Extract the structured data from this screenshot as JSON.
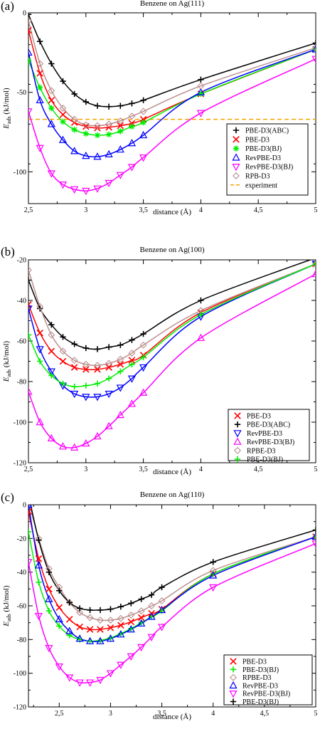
{
  "chart_data": [
    {
      "type": "line",
      "panel_label": "(a)",
      "title": "Benzene on Ag(111)",
      "xlabel": "distance (Å)",
      "ylabel_main": "E",
      "ylabel_sub": "ads",
      "ylabel_unit": " (kJ/mol)",
      "xlim": [
        2.5,
        5
      ],
      "ylim": [
        -120,
        0
      ],
      "xticks": [
        2.5,
        3,
        3.5,
        4,
        4.5,
        5
      ],
      "xtick_labels": [
        "2,5",
        "3",
        "3,5",
        "4",
        "4,5",
        "5"
      ],
      "yticks": [
        0,
        -50,
        -100
      ],
      "ytick_labels": [
        "0",
        "-50",
        "-100"
      ],
      "legend_position": "right",
      "hline": {
        "name": "experiment",
        "y": -67,
        "color": "#f5a300"
      },
      "series": [
        {
          "name": "PBE-D3(ABC)",
          "color": "#000000",
          "marker": "plus",
          "x": [
            2.5,
            2.6,
            2.7,
            2.8,
            2.9,
            3.0,
            3.1,
            3.2,
            3.3,
            3.4,
            3.5,
            4.0,
            5.0
          ],
          "y": [
            -1,
            -18,
            -32,
            -43,
            -51,
            -56,
            -58.5,
            -59,
            -58.5,
            -57,
            -55,
            -42,
            -19
          ]
        },
        {
          "name": "PBE-D3",
          "color": "#ff0000",
          "marker": "x",
          "x": [
            2.5,
            2.6,
            2.7,
            2.8,
            2.9,
            3.0,
            3.1,
            3.2,
            3.3,
            3.4,
            3.5,
            4.0,
            5.0
          ],
          "y": [
            -11,
            -38,
            -55,
            -64,
            -69,
            -71.5,
            -72.5,
            -72,
            -71,
            -69.5,
            -67,
            -51,
            -23
          ]
        },
        {
          "name": "PBE-D3(BJ)",
          "color": "#00ee00",
          "marker": "star",
          "x": [
            2.5,
            2.6,
            2.7,
            2.8,
            2.9,
            3.0,
            3.1,
            3.2,
            3.3,
            3.4,
            3.5,
            4.0,
            5.0
          ],
          "y": [
            -30,
            -47,
            -60,
            -68.5,
            -73.5,
            -76,
            -77,
            -76.5,
            -74.5,
            -71.5,
            -69,
            -51,
            -23
          ]
        },
        {
          "name": "RevPBE-D3",
          "color": "#0000ff",
          "marker": "triangle-up",
          "x": [
            2.5,
            2.6,
            2.7,
            2.8,
            2.9,
            3.0,
            3.1,
            3.2,
            3.3,
            3.4,
            3.5,
            4.0,
            5.0
          ],
          "y": [
            -25,
            -55,
            -70,
            -80,
            -87,
            -90,
            -90.5,
            -89,
            -86,
            -82,
            -77,
            -50,
            -23
          ]
        },
        {
          "name": "RevPBE-D3(BJ)",
          "color": "#ff00ff",
          "marker": "triangle-down",
          "x": [
            2.5,
            2.6,
            2.7,
            2.8,
            2.9,
            3.0,
            3.1,
            3.2,
            3.3,
            3.4,
            3.5,
            4.0,
            5.0
          ],
          "y": [
            -62,
            -85,
            -101,
            -108,
            -111,
            -112,
            -110.5,
            -107,
            -102,
            -97,
            -91,
            -63,
            -29
          ]
        },
        {
          "name": "RPB-D3",
          "color": "#bc8f8f",
          "marker": "diamond",
          "x": [
            2.5,
            2.6,
            2.7,
            2.8,
            2.9,
            3.0,
            3.1,
            3.2,
            3.3,
            3.4,
            3.5,
            4.0,
            5.0
          ],
          "y": [
            -5,
            -32,
            -49,
            -60,
            -67,
            -70.5,
            -71,
            -70,
            -68,
            -65,
            -62,
            -46,
            -22
          ]
        }
      ]
    },
    {
      "type": "line",
      "panel_label": "(b)",
      "title": "Benzene on Ag(100)",
      "xlabel": "distance (Å)",
      "ylabel_main": "E",
      "ylabel_sub": "ads",
      "ylabel_unit": " (kJ/mol)",
      "xlim": [
        2.5,
        5
      ],
      "ylim": [
        -120,
        -20
      ],
      "xticks": [
        2.5,
        3,
        3.5,
        4,
        4.5,
        5
      ],
      "xtick_labels": [
        "2,5",
        "3",
        "3,5",
        "4",
        "4,5",
        "5"
      ],
      "yticks": [
        -20,
        -40,
        -60,
        -80,
        -100,
        -120
      ],
      "ytick_labels": [
        "-20",
        "-40",
        "-60",
        "-80",
        "-100",
        "-120"
      ],
      "legend_position": "bottom-right",
      "series": [
        {
          "name": "PBE-D3",
          "color": "#ff0000",
          "marker": "x",
          "x": [
            2.5,
            2.6,
            2.7,
            2.8,
            2.9,
            3.0,
            3.1,
            3.2,
            3.3,
            3.4,
            3.5,
            4.0,
            5.0
          ],
          "y": [
            -42,
            -56,
            -65,
            -70,
            -73,
            -74,
            -74,
            -73,
            -71.5,
            -69.5,
            -67,
            -46,
            -22
          ]
        },
        {
          "name": "PBE-D3(ABC)",
          "color": "#000000",
          "marker": "plus",
          "x": [
            2.5,
            2.6,
            2.7,
            2.8,
            2.9,
            3.0,
            3.1,
            3.2,
            3.3,
            3.4,
            3.5,
            4.0,
            5.0
          ],
          "y": [
            -30,
            -44,
            -52,
            -58,
            -61.5,
            -63.5,
            -64,
            -63,
            -62,
            -59.5,
            -56.5,
            -40,
            -19
          ]
        },
        {
          "name": "RevPBE-D3",
          "color": "#0000ff",
          "marker": "triangle-down",
          "x": [
            2.5,
            2.6,
            2.7,
            2.8,
            2.9,
            3.0,
            3.1,
            3.2,
            3.3,
            3.4,
            3.5,
            4.0,
            5.0
          ],
          "y": [
            -44,
            -64,
            -75,
            -82,
            -86,
            -87.5,
            -87.5,
            -86,
            -83,
            -78.5,
            -73,
            -48,
            -22
          ]
        },
        {
          "name": "RevPBE-D3(BJ)",
          "color": "#ff00ff",
          "marker": "triangle-up",
          "x": [
            2.5,
            2.6,
            2.7,
            2.8,
            2.9,
            3.0,
            3.1,
            3.2,
            3.3,
            3.4,
            3.5,
            4.0,
            5.0
          ],
          "y": [
            -85,
            -100,
            -108,
            -112,
            -112.5,
            -110.5,
            -107,
            -102,
            -96.5,
            -91,
            -85.5,
            -58.5,
            -27
          ]
        },
        {
          "name": "RPBE-D3",
          "color": "#bc8f8f",
          "marker": "diamond",
          "x": [
            2.5,
            2.6,
            2.7,
            2.8,
            2.9,
            3.0,
            3.1,
            3.2,
            3.3,
            3.4,
            3.5,
            4.0,
            5.0
          ],
          "y": [
            -25,
            -43,
            -57,
            -65,
            -69.5,
            -71.5,
            -72,
            -71,
            -69,
            -66,
            -62,
            -45,
            -22
          ]
        },
        {
          "name": "PBE-D3(BJ)",
          "color": "#00ee00",
          "marker": "plus",
          "x": [
            2.5,
            2.6,
            2.7,
            2.8,
            2.9,
            3.0,
            3.1,
            3.2,
            3.3,
            3.4,
            3.5,
            4.0,
            5.0
          ],
          "y": [
            -57,
            -70,
            -77,
            -81,
            -82.5,
            -82,
            -81,
            -78.5,
            -75,
            -71.5,
            -68,
            -47,
            -22
          ]
        }
      ]
    },
    {
      "type": "line",
      "panel_label": "(c)",
      "title": "Benzene on Ag(110)",
      "xlabel": "distance (Å)",
      "ylabel_main": "E",
      "ylabel_sub": "ads",
      "ylabel_unit": " (kJ/mol)",
      "xlim": [
        2.2,
        5
      ],
      "ylim": [
        -120,
        0
      ],
      "xticks": [
        2.5,
        3,
        3.5,
        4,
        4.5,
        5
      ],
      "xtick_labels": [
        "2,5",
        "3",
        "3,5",
        "4",
        "4,5",
        "5"
      ],
      "yticks": [
        0,
        -20,
        -40,
        -60,
        -80,
        -100,
        -120
      ],
      "ytick_labels": [
        "0",
        "-20",
        "-40",
        "-60",
        "-80",
        "-100",
        "-120"
      ],
      "legend_position": "bottom-right",
      "series": [
        {
          "name": "PBE-D3",
          "color": "#ff0000",
          "marker": "x",
          "x": [
            2.2,
            2.3,
            2.4,
            2.5,
            2.6,
            2.7,
            2.8,
            2.9,
            3.0,
            3.1,
            3.2,
            3.3,
            3.4,
            3.5,
            4.0,
            5.0
          ],
          "y": [
            -4,
            -32,
            -50,
            -61,
            -68,
            -72.5,
            -74,
            -74,
            -73,
            -71.5,
            -69.5,
            -67,
            -64.5,
            -62,
            -41,
            -19
          ]
        },
        {
          "name": "PBE-D3(BJ)",
          "color": "#00ee00",
          "marker": "plus",
          "x": [
            2.2,
            2.3,
            2.4,
            2.5,
            2.6,
            2.7,
            2.8,
            2.9,
            3.0,
            3.1,
            3.2,
            3.3,
            3.4,
            3.5,
            4.0,
            5.0
          ],
          "y": [
            -16,
            -46,
            -63,
            -72,
            -77.5,
            -80,
            -81,
            -80.5,
            -79,
            -76.5,
            -73.5,
            -70,
            -66.5,
            -63,
            -41,
            -19
          ]
        },
        {
          "name": "RPBE-D3",
          "color": "#bc8f8f",
          "marker": "diamond",
          "x": [
            2.2,
            2.3,
            2.4,
            2.5,
            2.6,
            2.7,
            2.8,
            2.9,
            3.0,
            3.1,
            3.2,
            3.3,
            3.4,
            3.5,
            4.0,
            5.0
          ],
          "y": [
            2,
            -20,
            -38,
            -49,
            -58,
            -64,
            -67,
            -68.5,
            -68.5,
            -67.5,
            -65.5,
            -63,
            -60,
            -57,
            -39,
            -19
          ]
        },
        {
          "name": "RevPBE-D3",
          "color": "#0000ff",
          "marker": "triangle-up",
          "x": [
            2.2,
            2.3,
            2.4,
            2.5,
            2.6,
            2.7,
            2.8,
            2.9,
            3.0,
            3.1,
            3.2,
            3.3,
            3.4,
            3.5,
            4.0,
            5.0
          ],
          "y": [
            0,
            -36,
            -56,
            -68,
            -75,
            -79.5,
            -81,
            -81,
            -79.5,
            -77,
            -74,
            -70.5,
            -66.5,
            -62.5,
            -42,
            -19
          ]
        },
        {
          "name": "RevPBE-D3(BJ)",
          "color": "#ff00ff",
          "marker": "triangle-down",
          "x": [
            2.2,
            2.3,
            2.4,
            2.5,
            2.6,
            2.7,
            2.8,
            2.9,
            3.0,
            3.1,
            3.2,
            3.3,
            3.4,
            3.5,
            4.0,
            5.0
          ],
          "y": [
            -34,
            -66,
            -85,
            -96,
            -102.5,
            -105.5,
            -105.5,
            -104,
            -100,
            -95,
            -90,
            -84.5,
            -78.5,
            -72.5,
            -49,
            -23
          ]
        },
        {
          "name": "PBE-D3(BJ)",
          "color": "#000000",
          "marker": "plus",
          "x": [
            2.2,
            2.3,
            2.4,
            2.5,
            2.6,
            2.7,
            2.8,
            2.9,
            3.0,
            3.1,
            3.2,
            3.3,
            3.4,
            3.5,
            4.0,
            5.0
          ],
          "y": [
            6,
            -21,
            -40,
            -51,
            -58,
            -61.5,
            -62.5,
            -62.5,
            -62,
            -60.5,
            -58.5,
            -56,
            -53.5,
            -49,
            -34,
            -15
          ]
        }
      ]
    }
  ]
}
